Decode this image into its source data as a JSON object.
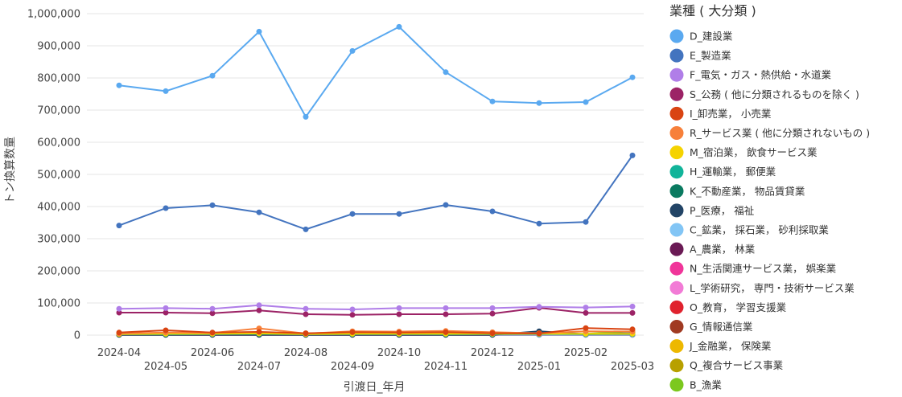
{
  "chart_data": {
    "type": "line",
    "xlabel": "引渡日_年月",
    "ylabel": "トン換算数量",
    "ylim": [
      0,
      1000000
    ],
    "y_ticks": [
      0,
      100000,
      200000,
      300000,
      400000,
      500000,
      600000,
      700000,
      800000,
      900000,
      1000000
    ],
    "y_tick_labels": [
      "0",
      "100,000",
      "200,000",
      "300,000",
      "400,000",
      "500,000",
      "600,000",
      "700,000",
      "800,000",
      "900,000",
      "1,000,000"
    ],
    "categories": [
      "2024-04",
      "2024-05",
      "2024-06",
      "2024-07",
      "2024-08",
      "2024-09",
      "2024-10",
      "2024-11",
      "2024-12",
      "2025-01",
      "2025-02",
      "2025-03"
    ],
    "grid": "horizontal",
    "legend": {
      "title": "業種 ( 大分類 )",
      "placement": "right"
    },
    "series": [
      {
        "name": "D_建設業",
        "color": "#5aa9f0",
        "values": [
          777000,
          759000,
          807000,
          944000,
          679000,
          884000,
          959000,
          818000,
          727000,
          722000,
          725000,
          802000
        ]
      },
      {
        "name": "E_製造業",
        "color": "#4374bf",
        "values": [
          341000,
          395000,
          404000,
          382000,
          329000,
          377000,
          377000,
          405000,
          385000,
          347000,
          352000,
          559000
        ]
      },
      {
        "name": "F_電気・ガス・熱供給・水道業",
        "color": "#b07ee8",
        "values": [
          82000,
          84000,
          82000,
          93000,
          82000,
          80000,
          84000,
          84000,
          84000,
          88000,
          86000,
          89000
        ]
      },
      {
        "name": "S_公務 ( 他に分類されるものを除く )",
        "color": "#9c2366",
        "values": [
          70000,
          70000,
          68000,
          77000,
          65000,
          63000,
          65000,
          65000,
          67000,
          85000,
          69000,
          69000
        ]
      },
      {
        "name": "I_卸売業， 小売業",
        "color": "#d94412",
        "values": [
          8000,
          15000,
          8000,
          10000,
          6000,
          9000,
          8000,
          9000,
          6000,
          5000,
          22000,
          18000
        ]
      },
      {
        "name": "R_サービス業 ( 他に分類されないもの )",
        "color": "#f7803a",
        "values": [
          5000,
          8000,
          7000,
          21000,
          5000,
          12000,
          11000,
          13000,
          9000,
          6000,
          12000,
          11000
        ]
      },
      {
        "name": "M_宿泊業， 飲食サービス業",
        "color": "#f5d300",
        "values": [
          3000,
          4000,
          4000,
          5000,
          3000,
          4000,
          4000,
          4000,
          4000,
          4000,
          4000,
          4000
        ]
      },
      {
        "name": "H_運輸業， 郵便業",
        "color": "#11b49a",
        "values": [
          3000,
          3000,
          3000,
          4000,
          3000,
          3000,
          3000,
          3000,
          3000,
          3000,
          3000,
          4000
        ]
      },
      {
        "name": "K_不動産業， 物品賃貸業",
        "color": "#0a7a60",
        "values": [
          2000,
          2000,
          3000,
          3000,
          2000,
          3000,
          3000,
          2000,
          3000,
          4000,
          3000,
          3000
        ]
      },
      {
        "name": "P_医療， 福祉",
        "color": "#224466",
        "values": [
          1000,
          1000,
          1000,
          1000,
          1000,
          1000,
          1000,
          1000,
          1000,
          12000,
          3000,
          6000
        ]
      },
      {
        "name": "C_鉱業， 採石業， 砂利採取業",
        "color": "#82c5f5",
        "values": [
          1000,
          1000,
          1000,
          1000,
          1000,
          1000,
          1000,
          1000,
          1000,
          1000,
          1000,
          1000
        ]
      },
      {
        "name": "A_農業， 林業",
        "color": "#6a1a55",
        "values": [
          1000,
          1000,
          1000,
          1000,
          1000,
          1000,
          1000,
          1000,
          1000,
          1000,
          1000,
          1000
        ]
      },
      {
        "name": "N_生活関連サービス業， 娯楽業",
        "color": "#f0359a",
        "values": [
          1000,
          1000,
          1000,
          1000,
          1000,
          1000,
          1000,
          1000,
          1000,
          1000,
          1000,
          1000
        ]
      },
      {
        "name": "L_学術研究， 専門・技術サービス業",
        "color": "#f27bd6",
        "values": [
          1000,
          1000,
          1000,
          1000,
          1000,
          1000,
          1000,
          1000,
          1000,
          1000,
          1000,
          1000
        ]
      },
      {
        "name": "O_教育， 学習支援業",
        "color": "#e0222e",
        "values": [
          1000,
          1000,
          1000,
          1000,
          1000,
          1000,
          1000,
          1000,
          1000,
          1000,
          1000,
          1000
        ]
      },
      {
        "name": "G_情報通信業",
        "color": "#a03a22",
        "values": [
          1000,
          1000,
          1000,
          1000,
          1000,
          1000,
          1000,
          1000,
          1000,
          1000,
          1000,
          1000
        ]
      },
      {
        "name": "J_金融業， 保険業",
        "color": "#edb800",
        "values": [
          1000,
          1000,
          1000,
          1000,
          1000,
          1000,
          1000,
          1000,
          1000,
          1000,
          1000,
          1000
        ]
      },
      {
        "name": "Q_複合サービス事業",
        "color": "#b8a000",
        "values": [
          1000,
          1000,
          1000,
          1000,
          1000,
          1000,
          1000,
          1000,
          1000,
          1000,
          1000,
          1000
        ]
      },
      {
        "name": "B_漁業",
        "color": "#7cc81e",
        "values": [
          4000,
          4000,
          4000,
          4000,
          4000,
          4000,
          4000,
          4000,
          4000,
          4000,
          4000,
          12000
        ]
      }
    ]
  }
}
